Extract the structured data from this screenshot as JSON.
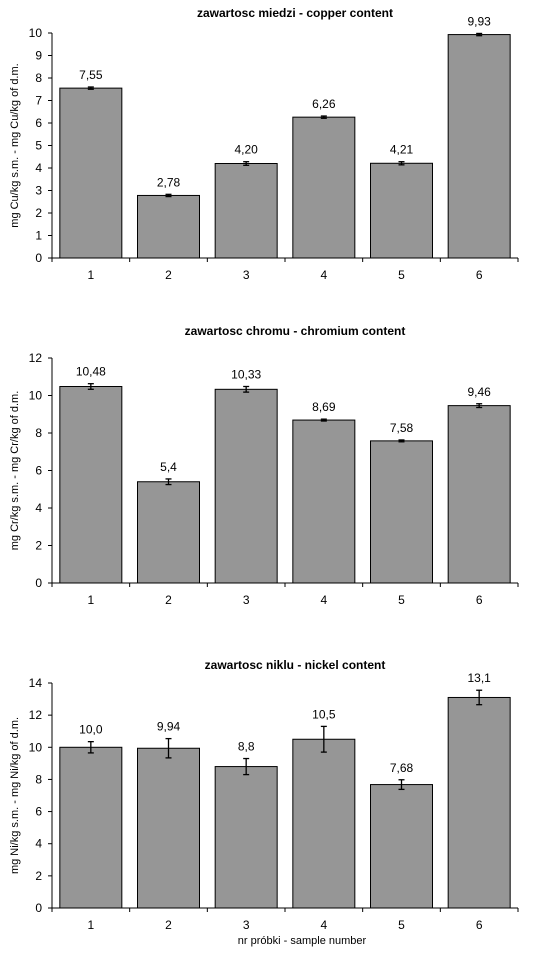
{
  "colors": {
    "bar": "#969696",
    "bar_stroke": "#000000",
    "axis": "#000000"
  },
  "x_axis_label": "nr próbki - sample number",
  "chart_data": [
    {
      "type": "bar",
      "title": "zawartosc miedzi - copper content",
      "ylabel": "mg Cu/kg s.m. - mg Cu/kg of d.m.",
      "categories": [
        "1",
        "2",
        "3",
        "4",
        "5",
        "6"
      ],
      "values": [
        7.55,
        2.78,
        4.2,
        6.26,
        4.21,
        9.93
      ],
      "data_labels": [
        "7,55",
        "2,78",
        "4,20",
        "6,26",
        "4,21",
        "9,93"
      ],
      "errors": [
        0.05,
        0.05,
        0.08,
        0.05,
        0.07,
        0.05
      ],
      "ylim": [
        0,
        10
      ],
      "yticks": [
        0,
        1,
        2,
        3,
        4,
        5,
        6,
        7,
        8,
        9,
        10
      ],
      "grid": false
    },
    {
      "type": "bar",
      "title": "zawartosc chromu - chromium content",
      "ylabel": "mg Cr/kg s.m. - mg Cr/kg of d.m.",
      "categories": [
        "1",
        "2",
        "3",
        "4",
        "5",
        "6"
      ],
      "values": [
        10.48,
        5.4,
        10.33,
        8.69,
        7.58,
        9.46
      ],
      "data_labels": [
        "10,48",
        "5,4",
        "10,33",
        "8,69",
        "7,58",
        "9,46"
      ],
      "errors": [
        0.15,
        0.15,
        0.15,
        0.05,
        0.05,
        0.1
      ],
      "ylim": [
        0,
        12
      ],
      "yticks": [
        0,
        2,
        4,
        6,
        8,
        10,
        12
      ],
      "grid": false
    },
    {
      "type": "bar",
      "title": "zawartosc niklu - nickel content",
      "ylabel": "mg Ni/kg s.m. - mg Ni/kg of d.m.",
      "categories": [
        "1",
        "2",
        "3",
        "4",
        "5",
        "6"
      ],
      "values": [
        10.0,
        9.94,
        8.8,
        10.5,
        7.68,
        13.1
      ],
      "data_labels": [
        "10,0",
        "9,94",
        "8,8",
        "10,5",
        "7,68",
        "13,1"
      ],
      "errors": [
        0.35,
        0.6,
        0.5,
        0.8,
        0.3,
        0.45
      ],
      "ylim": [
        0,
        14
      ],
      "yticks": [
        0,
        2,
        4,
        6,
        8,
        10,
        12,
        14
      ],
      "grid": false
    }
  ]
}
